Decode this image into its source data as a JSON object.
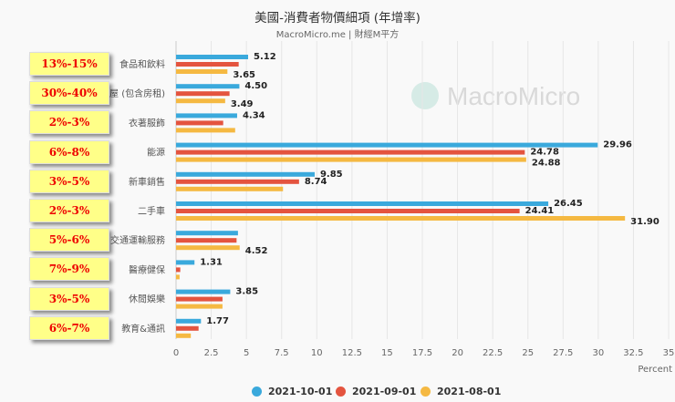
{
  "chart_data": {
    "type": "bar",
    "orientation": "horizontal",
    "title": "美國-消費者物價細項 (年增率)",
    "subtitle": "MacroMicro.me | 財經M平方",
    "watermark": "MacroMicro",
    "xlabel": "Percent",
    "xlim": [
      0,
      35
    ],
    "xticks": [
      "0",
      "2.5",
      "5",
      "7.5",
      "10",
      "12.5",
      "15",
      "17.5",
      "20",
      "22.5",
      "25",
      "27.5",
      "30",
      "32.5",
      "35"
    ],
    "grid": true,
    "legend_position": "bottom",
    "categories": [
      "食品和飲料",
      "房屋 (包含房租)",
      "衣著服飾",
      "能源",
      "新車銷售",
      "二手車",
      "交通運輸服務",
      "醫療健保",
      "休閒娛樂",
      "教育&通訊"
    ],
    "series": [
      {
        "name": "2021-10-01",
        "color": "#3aa9dc",
        "values": [
          5.12,
          4.5,
          4.34,
          29.96,
          9.85,
          26.45,
          4.4,
          1.31,
          3.85,
          1.77
        ],
        "labels": [
          "5.12",
          "4.50",
          "4.34",
          "29.96",
          "9.85",
          "26.45",
          null,
          "1.31",
          "3.85",
          "1.77"
        ]
      },
      {
        "name": "2021-09-01",
        "color": "#e4543f",
        "values": [
          4.45,
          3.8,
          3.35,
          24.78,
          8.74,
          24.41,
          4.3,
          0.3,
          3.3,
          1.6
        ],
        "labels": [
          null,
          null,
          null,
          "24.78",
          "8.74",
          "24.41",
          null,
          null,
          null,
          null
        ]
      },
      {
        "name": "2021-08-01",
        "color": "#f5b942",
        "values": [
          3.65,
          3.49,
          4.2,
          24.88,
          7.6,
          31.9,
          4.52,
          0.25,
          3.3,
          1.05
        ],
        "labels": [
          "3.65",
          "3.49",
          null,
          "24.88",
          null,
          "31.90",
          "4.52",
          null,
          null,
          null
        ]
      }
    ],
    "annotations": [
      "13%-15%",
      "30%-40%",
      "2%-3%",
      "6%-8%",
      "3%-5%",
      "2%-3%",
      "5%-6%",
      "7%-9%",
      "3%-5%",
      "6%-7%"
    ]
  }
}
